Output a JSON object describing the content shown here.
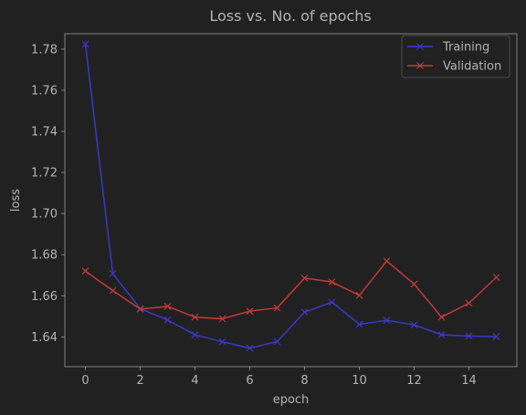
{
  "chart_data": {
    "type": "line",
    "title": "Loss vs. No. of epochs",
    "xlabel": "epoch",
    "ylabel": "loss",
    "xlim": [
      -0.75,
      15.75
    ],
    "ylim": [
      1.6255,
      1.7875
    ],
    "xticks": [
      0,
      2,
      4,
      6,
      8,
      10,
      12,
      14
    ],
    "yticks": [
      1.64,
      1.66,
      1.68,
      1.7,
      1.72,
      1.74,
      1.76,
      1.78
    ],
    "grid": false,
    "legend_position": "top-right",
    "x": [
      0,
      1,
      2,
      3,
      4,
      5,
      6,
      7,
      8,
      9,
      10,
      11,
      12,
      13,
      14,
      15
    ],
    "series": [
      {
        "name": "Training",
        "color": "#3a3ac6",
        "marker": "x",
        "values": [
          1.7825,
          1.6708,
          1.6537,
          1.6482,
          1.641,
          1.6376,
          1.6345,
          1.6377,
          1.652,
          1.6569,
          1.6461,
          1.6481,
          1.6458,
          1.641,
          1.6404,
          1.6401
        ]
      },
      {
        "name": "Validation",
        "color": "#c43a3a",
        "marker": "x",
        "values": [
          1.672,
          1.6625,
          1.6535,
          1.6548,
          1.6496,
          1.6488,
          1.6525,
          1.6541,
          1.6686,
          1.6667,
          1.6602,
          1.6769,
          1.6657,
          1.6496,
          1.6564,
          1.669
        ]
      }
    ]
  }
}
